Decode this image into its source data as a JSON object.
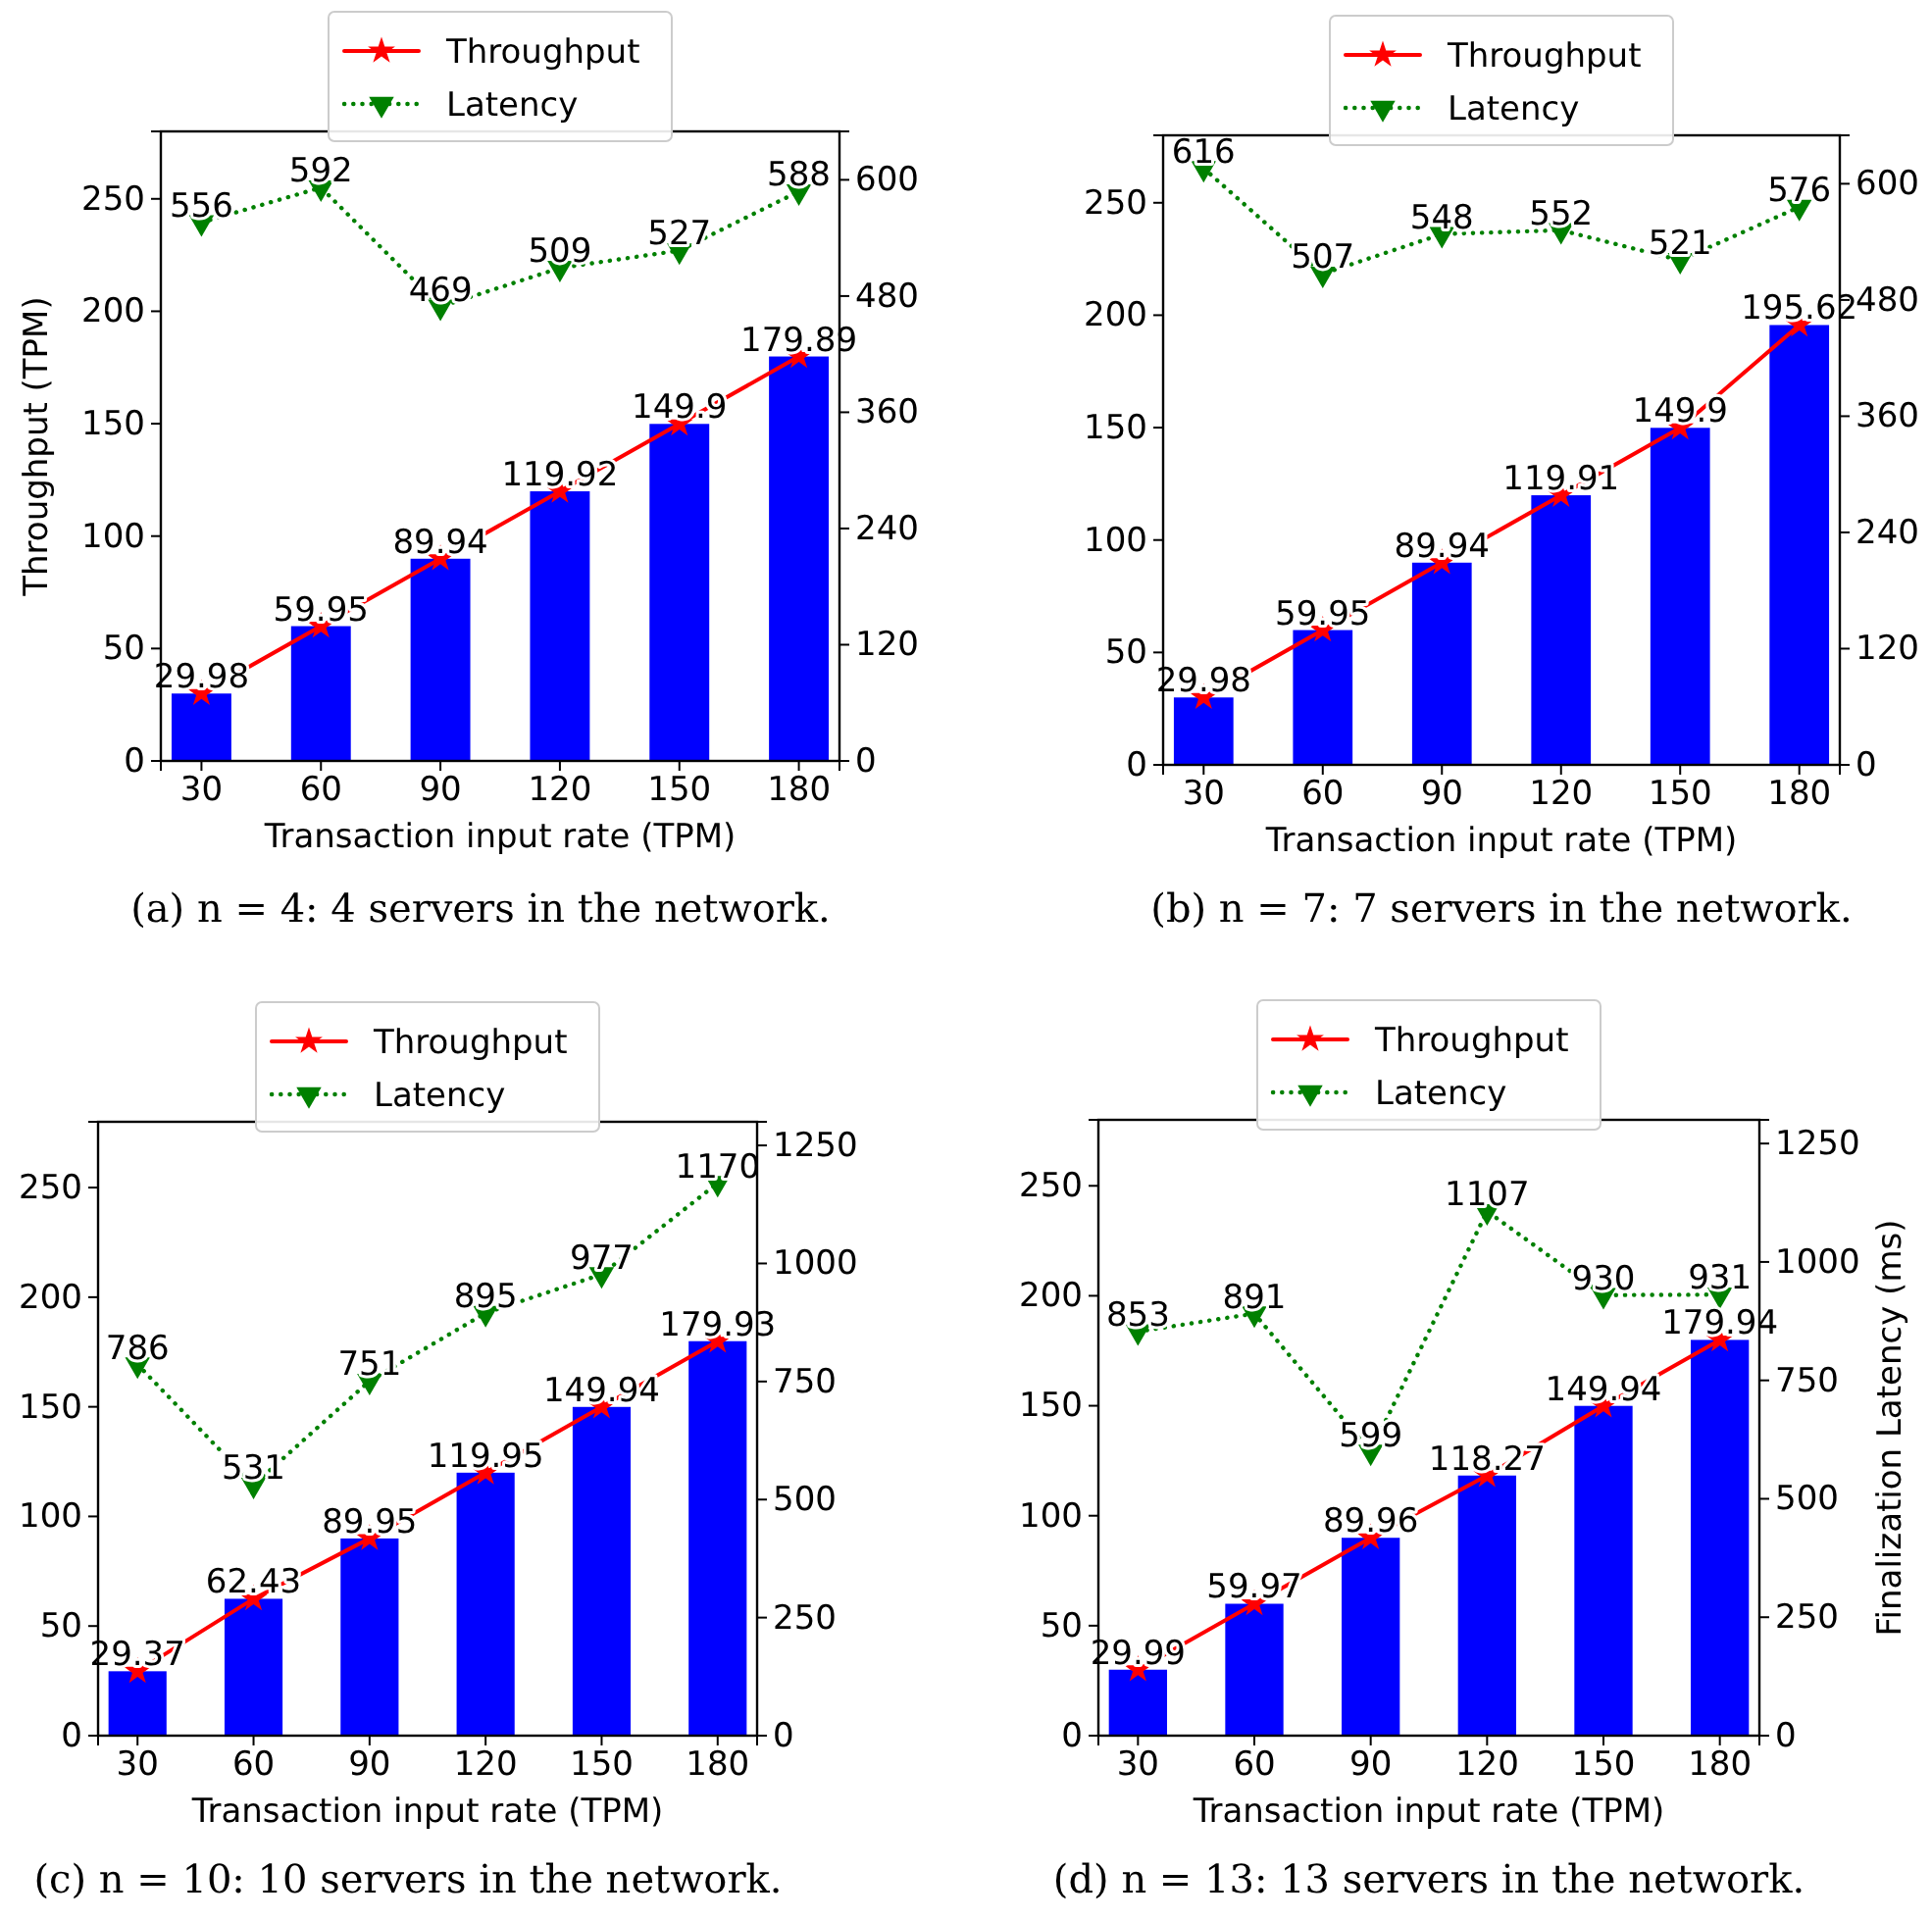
{
  "chart_data": [
    {
      "type": "bar",
      "categories": [
        "30",
        "60",
        "90",
        "120",
        "150",
        "180"
      ],
      "xlabel": "Transaction input rate (TPM)",
      "ylabel": "Throughput (TPM)",
      "ylim": [
        0,
        280
      ],
      "yticks": [
        0,
        50,
        100,
        150,
        200,
        250
      ],
      "y2lim": [
        0,
        650
      ],
      "y2ticks": [
        0,
        120,
        240,
        360,
        480,
        600
      ],
      "legend": "top",
      "annotations": [
        "(a) n = 4: 4 servers in the network."
      ],
      "series": [
        {
          "color": "#0000ff",
          "values": [
            29.98,
            59.95,
            89.94,
            119.92,
            149.9,
            179.89
          ],
          "value_labels": [
            "29.98",
            "59.95",
            "89.94",
            "119.92",
            "149.9",
            "179.89"
          ]
        },
        {
          "type": "line",
          "name": "Throughput",
          "color": "#ff0000",
          "marker": "star",
          "line_style": "solid",
          "values": [
            29.98,
            59.95,
            89.94,
            119.92,
            149.9,
            179.89
          ]
        },
        {
          "type": "line",
          "name": "Latency",
          "color": "#008000",
          "marker": "triangle",
          "line_style": "dotted",
          "axis": "y2",
          "values": [
            556,
            592,
            469,
            509,
            527,
            588
          ],
          "value_labels": [
            "556",
            "592",
            "469",
            "509",
            "527",
            "588"
          ]
        }
      ]
    },
    {
      "type": "bar",
      "categories": [
        "30",
        "60",
        "90",
        "120",
        "150",
        "180"
      ],
      "xlabel": "Transaction input rate (TPM)",
      "ylim": [
        0,
        280
      ],
      "yticks": [
        0,
        50,
        100,
        150,
        200,
        250
      ],
      "y2lim": [
        0,
        650
      ],
      "y2ticks": [
        0,
        120,
        240,
        360,
        480,
        600
      ],
      "legend": "top",
      "annotations": [
        "(b) n = 7: 7 servers in the network."
      ],
      "series": [
        {
          "color": "#0000ff",
          "values": [
            29.98,
            59.95,
            89.94,
            119.91,
            149.9,
            195.62
          ],
          "value_labels": [
            "29.98",
            "59.95",
            "89.94",
            "119.91",
            "149.9",
            "195.62"
          ]
        },
        {
          "type": "line",
          "name": "Throughput",
          "color": "#ff0000",
          "marker": "star",
          "line_style": "solid",
          "values": [
            29.98,
            59.95,
            89.94,
            119.91,
            149.9,
            195.62
          ]
        },
        {
          "type": "line",
          "name": "Latency",
          "color": "#008000",
          "marker": "triangle",
          "line_style": "dotted",
          "axis": "y2",
          "values": [
            616,
            507,
            548,
            552,
            521,
            576
          ],
          "value_labels": [
            "616",
            "507",
            "548",
            "552",
            "521",
            "576"
          ]
        }
      ]
    },
    {
      "type": "bar",
      "categories": [
        "30",
        "60",
        "90",
        "120",
        "150",
        "180"
      ],
      "xlabel": "Transaction input rate (TPM)",
      "ylim": [
        0,
        280
      ],
      "yticks": [
        0,
        50,
        100,
        150,
        200,
        250
      ],
      "y2lim": [
        0,
        1300
      ],
      "y2ticks": [
        0,
        250,
        500,
        750,
        1000,
        1250
      ],
      "legend": "top",
      "annotations": [
        "(c) n = 10: 10 servers in the network."
      ],
      "series": [
        {
          "color": "#0000ff",
          "values": [
            29.37,
            62.43,
            89.95,
            119.95,
            149.94,
            179.93
          ],
          "value_labels": [
            "29.37",
            "62.43",
            "89.95",
            "119.95",
            "149.94",
            "179.93"
          ]
        },
        {
          "type": "line",
          "name": "Throughput",
          "color": "#ff0000",
          "marker": "star",
          "line_style": "solid",
          "values": [
            29.37,
            62.43,
            89.95,
            119.95,
            149.94,
            179.93
          ]
        },
        {
          "type": "line",
          "name": "Latency",
          "color": "#008000",
          "marker": "triangle",
          "line_style": "dotted",
          "axis": "y2",
          "values": [
            786,
            531,
            751,
            895,
            977,
            1170
          ],
          "value_labels": [
            "786",
            "531",
            "751",
            "895",
            "977",
            "1170"
          ]
        }
      ]
    },
    {
      "type": "bar",
      "categories": [
        "30",
        "60",
        "90",
        "120",
        "150",
        "180"
      ],
      "xlabel": "Transaction input rate (TPM)",
      "y2label": "Finalization Latency (ms)",
      "ylim": [
        0,
        280
      ],
      "yticks": [
        0,
        50,
        100,
        150,
        200,
        250
      ],
      "y2lim": [
        0,
        1300
      ],
      "y2ticks": [
        0,
        250,
        500,
        750,
        1000,
        1250
      ],
      "legend": "top",
      "annotations": [
        "(d) n = 13: 13 servers in the network."
      ],
      "series": [
        {
          "color": "#0000ff",
          "values": [
            29.99,
            59.97,
            89.96,
            118.27,
            149.94,
            179.94
          ],
          "value_labels": [
            "29.99",
            "59.97",
            "89.96",
            "118.27",
            "149.94",
            "179.94"
          ]
        },
        {
          "type": "line",
          "name": "Throughput",
          "color": "#ff0000",
          "marker": "star",
          "line_style": "solid",
          "values": [
            29.99,
            59.97,
            89.96,
            118.27,
            149.94,
            179.94
          ]
        },
        {
          "type": "line",
          "name": "Latency",
          "color": "#008000",
          "marker": "triangle",
          "line_style": "dotted",
          "axis": "y2",
          "values": [
            853,
            891,
            599,
            1107,
            930,
            931
          ],
          "value_labels": [
            "853",
            "891",
            "599",
            "1107",
            "930",
            "931"
          ]
        }
      ]
    }
  ]
}
